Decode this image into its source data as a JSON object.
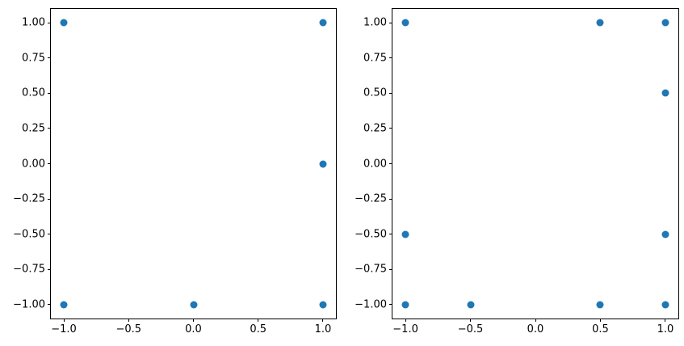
{
  "figure": {
    "background": "#ffffff",
    "spine_color": "#000000",
    "tick_color": "#000000"
  },
  "chart_data": [
    {
      "type": "scatter",
      "name": "left-subplot",
      "title": "",
      "xlabel": "",
      "ylabel": "",
      "grid": false,
      "legend": null,
      "marker_color": "#1f77b4",
      "xlim": [
        -1.1,
        1.1
      ],
      "ylim": [
        -1.1,
        1.1
      ],
      "x_ticks": [
        -1.0,
        -0.5,
        0.0,
        0.5,
        1.0
      ],
      "x_tick_labels": [
        "−1.0",
        "−0.5",
        "0.0",
        "0.5",
        "1.0"
      ],
      "y_ticks": [
        1.0,
        0.75,
        0.5,
        0.25,
        0.0,
        -0.25,
        -0.5,
        -0.75,
        -1.0
      ],
      "y_tick_labels": [
        "1.00",
        "0.75",
        "0.50",
        "0.25",
        "0.00",
        "−0.25",
        "−0.50",
        "−0.75",
        "−1.00"
      ],
      "points": [
        [
          -1,
          1
        ],
        [
          1,
          1
        ],
        [
          1,
          0
        ],
        [
          -1,
          -1
        ],
        [
          0,
          -1
        ],
        [
          1,
          -1
        ]
      ]
    },
    {
      "type": "scatter",
      "name": "right-subplot",
      "title": "",
      "xlabel": "",
      "ylabel": "",
      "grid": false,
      "legend": null,
      "marker_color": "#1f77b4",
      "xlim": [
        -1.1,
        1.1
      ],
      "ylim": [
        -1.1,
        1.1
      ],
      "x_ticks": [
        -1.0,
        -0.5,
        0.0,
        0.5,
        1.0
      ],
      "x_tick_labels": [
        "−1.0",
        "−0.5",
        "0.0",
        "0.5",
        "1.0"
      ],
      "y_ticks": [
        1.0,
        0.75,
        0.5,
        0.25,
        0.0,
        -0.25,
        -0.5,
        -0.75,
        -1.0
      ],
      "y_tick_labels": [
        "1.00",
        "0.75",
        "0.50",
        "0.25",
        "0.00",
        "−0.25",
        "−0.50",
        "−0.75",
        "−1.00"
      ],
      "points": [
        [
          -1,
          1
        ],
        [
          0.5,
          1
        ],
        [
          1,
          1
        ],
        [
          1,
          0.5
        ],
        [
          -1,
          -0.5
        ],
        [
          1,
          -0.5
        ],
        [
          -1,
          -1
        ],
        [
          -0.5,
          -1
        ],
        [
          0.5,
          -1
        ],
        [
          1,
          -1
        ]
      ]
    }
  ]
}
